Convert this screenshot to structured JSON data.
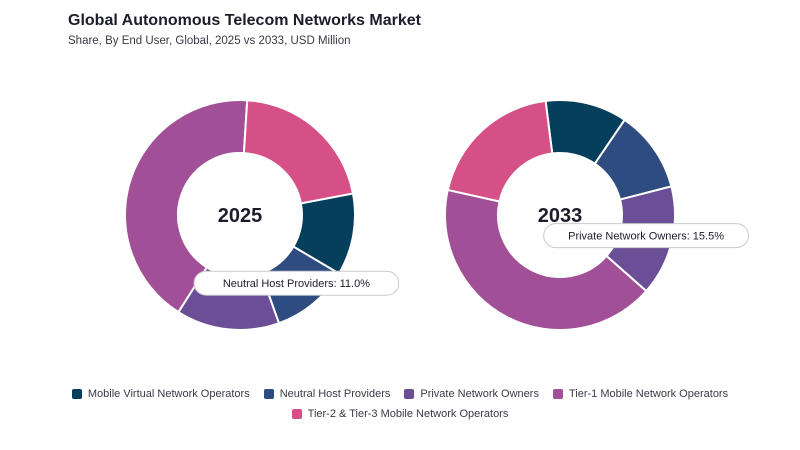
{
  "header": {
    "title": "Global Autonomous Telecom Networks Market",
    "subtitle": "Share, By End User, Global, 2025 vs 2033, USD Million"
  },
  "chart_data": {
    "type": "pie",
    "variant": "donut",
    "categories": [
      "Mobile Virtual Network Operators",
      "Neutral Host Providers",
      "Private Network Owners",
      "Tier-1 Mobile Network Operators",
      "Tier-2 & Tier-3 Mobile Network Operators"
    ],
    "colors": [
      "#063f5c",
      "#2e4c80",
      "#6a4f96",
      "#a14f97",
      "#d65088"
    ],
    "series": [
      {
        "name": "2025",
        "values": [
          11.5,
          11.0,
          14.5,
          42.0,
          21.0
        ],
        "callout_label": "Neutral Host Providers: 11.0%",
        "callout_index": 1
      },
      {
        "name": "2033",
        "values": [
          11.5,
          11.5,
          15.5,
          42.0,
          19.5
        ],
        "callout_label": "Private Network Owners: 15.5%",
        "callout_index": 2
      }
    ],
    "legend_placement": "bottom"
  }
}
